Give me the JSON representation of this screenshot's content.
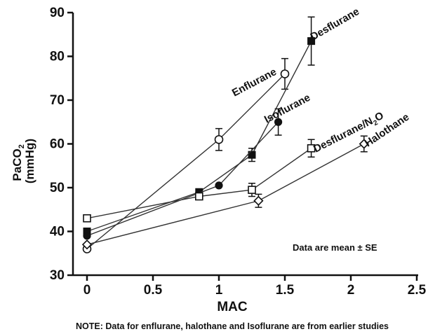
{
  "chart_data": {
    "type": "line",
    "xlabel": "MAC",
    "ylabel_main": "PaCO",
    "ylabel_sub": "2",
    "ylabel_units": "(mmHg)",
    "xlim": [
      0,
      2.5
    ],
    "ylim": [
      30,
      90
    ],
    "x_ticks": [
      0,
      0.5,
      1,
      1.5,
      2,
      2.5
    ],
    "x_tick_labels": [
      "0",
      "0.5",
      "1",
      "1.5",
      "2",
      "2.5"
    ],
    "y_ticks": [
      30,
      40,
      50,
      60,
      70,
      80,
      90
    ],
    "y_tick_labels": [
      "30",
      "40",
      "50",
      "60",
      "70",
      "80",
      "90"
    ],
    "grid": false,
    "annotation": "Data are mean ± SE",
    "footnote": "NOTE: Data for enflurane, halothane and Isoflurane are from earlier studies",
    "series": [
      {
        "name": "Enflurane",
        "marker": "open-circle",
        "x": [
          0,
          1.0,
          1.5
        ],
        "y": [
          36,
          61,
          76
        ],
        "se": [
          0,
          2.5,
          3.5
        ]
      },
      {
        "name": "Desflurane",
        "marker": "filled-square",
        "x": [
          0,
          0.85,
          1.25,
          1.7
        ],
        "y": [
          40,
          49,
          57.5,
          83.5
        ],
        "se": [
          0,
          0,
          1.5,
          5.5
        ]
      },
      {
        "name": "Isoflurane",
        "marker": "filled-circle",
        "x": [
          0,
          1.0,
          1.45
        ],
        "y": [
          39,
          50.5,
          65
        ],
        "se": [
          0,
          0,
          3
        ]
      },
      {
        "name_main": "Desflurane/N",
        "name_sub": "2",
        "name_tail": "O",
        "marker": "open-square",
        "x": [
          0,
          0.85,
          1.25,
          1.7
        ],
        "y": [
          43,
          48,
          49.5,
          59
        ],
        "se": [
          0,
          0,
          1.5,
          2
        ]
      },
      {
        "name": "Halothane",
        "marker": "open-diamond",
        "x": [
          0,
          1.3,
          2.1
        ],
        "y": [
          37,
          47,
          60
        ],
        "se": [
          0,
          1.5,
          1.8
        ]
      }
    ]
  }
}
